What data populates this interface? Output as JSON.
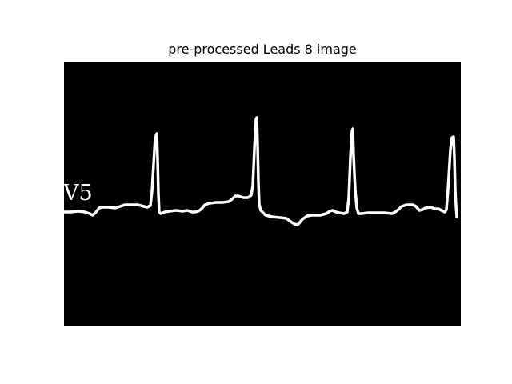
{
  "figure": {
    "title": "pre-processed Leads 8 image"
  },
  "image": {
    "background_color": "#000000",
    "trace_color": "#ffffff",
    "lead_label": "V5"
  }
}
